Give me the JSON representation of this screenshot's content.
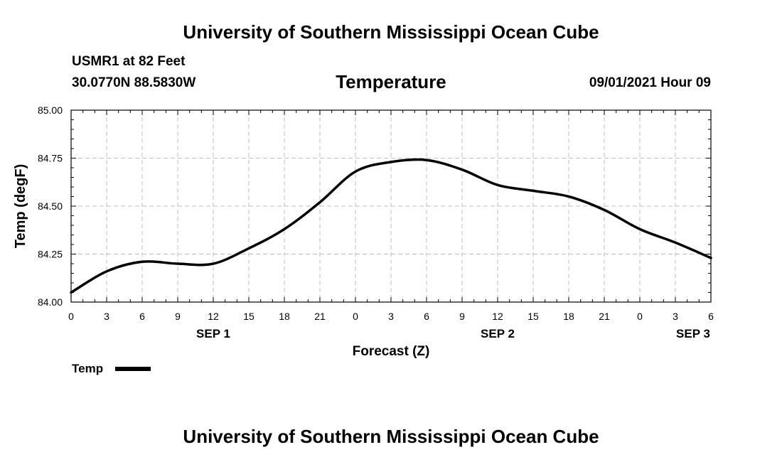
{
  "header": {
    "title": "University of Southern Mississippi Ocean Cube",
    "station": "USMR1 at 82 Feet",
    "coords": "30.0770N  88.5830W",
    "variable": "Temperature",
    "datetime": "09/01/2021 Hour 09"
  },
  "footer": {
    "title": "University of Southern Mississippi Ocean Cube"
  },
  "legend": {
    "label": "Temp"
  },
  "colors": {
    "line": "#000000",
    "grid": "#bdbdbd"
  },
  "chart_data": {
    "type": "line",
    "title": "Temperature",
    "xlabel": "Forecast (Z)",
    "ylabel": "Temp (degF)",
    "ylim": [
      84.0,
      85.0
    ],
    "xlim_hours": [
      0,
      54
    ],
    "grid": true,
    "legend": "bottom-left",
    "y_ticks": [
      "84.00",
      "84.25",
      "84.50",
      "84.75",
      "85.00"
    ],
    "y_tick_values": [
      84.0,
      84.25,
      84.5,
      84.75,
      85.0
    ],
    "x_ticks": [
      "0",
      "3",
      "6",
      "9",
      "12",
      "15",
      "18",
      "21",
      "0",
      "3",
      "6",
      "9",
      "12",
      "15",
      "18",
      "21",
      "0",
      "3",
      "6"
    ],
    "day_labels": [
      {
        "label": "SEP 1",
        "hour": 12
      },
      {
        "label": "SEP 2",
        "hour": 36
      },
      {
        "label": "SEP 3",
        "hour": 52.5
      }
    ],
    "series": [
      {
        "name": "Temp",
        "x": [
          0,
          3,
          6,
          9,
          12,
          15,
          18,
          21,
          24,
          27,
          30,
          33,
          36,
          39,
          42,
          45,
          48,
          51,
          54
        ],
        "values": [
          84.05,
          84.16,
          84.21,
          84.2,
          84.2,
          84.28,
          84.38,
          84.52,
          84.68,
          84.73,
          84.74,
          84.69,
          84.61,
          84.58,
          84.55,
          84.48,
          84.38,
          84.31,
          84.23
        ]
      }
    ]
  }
}
